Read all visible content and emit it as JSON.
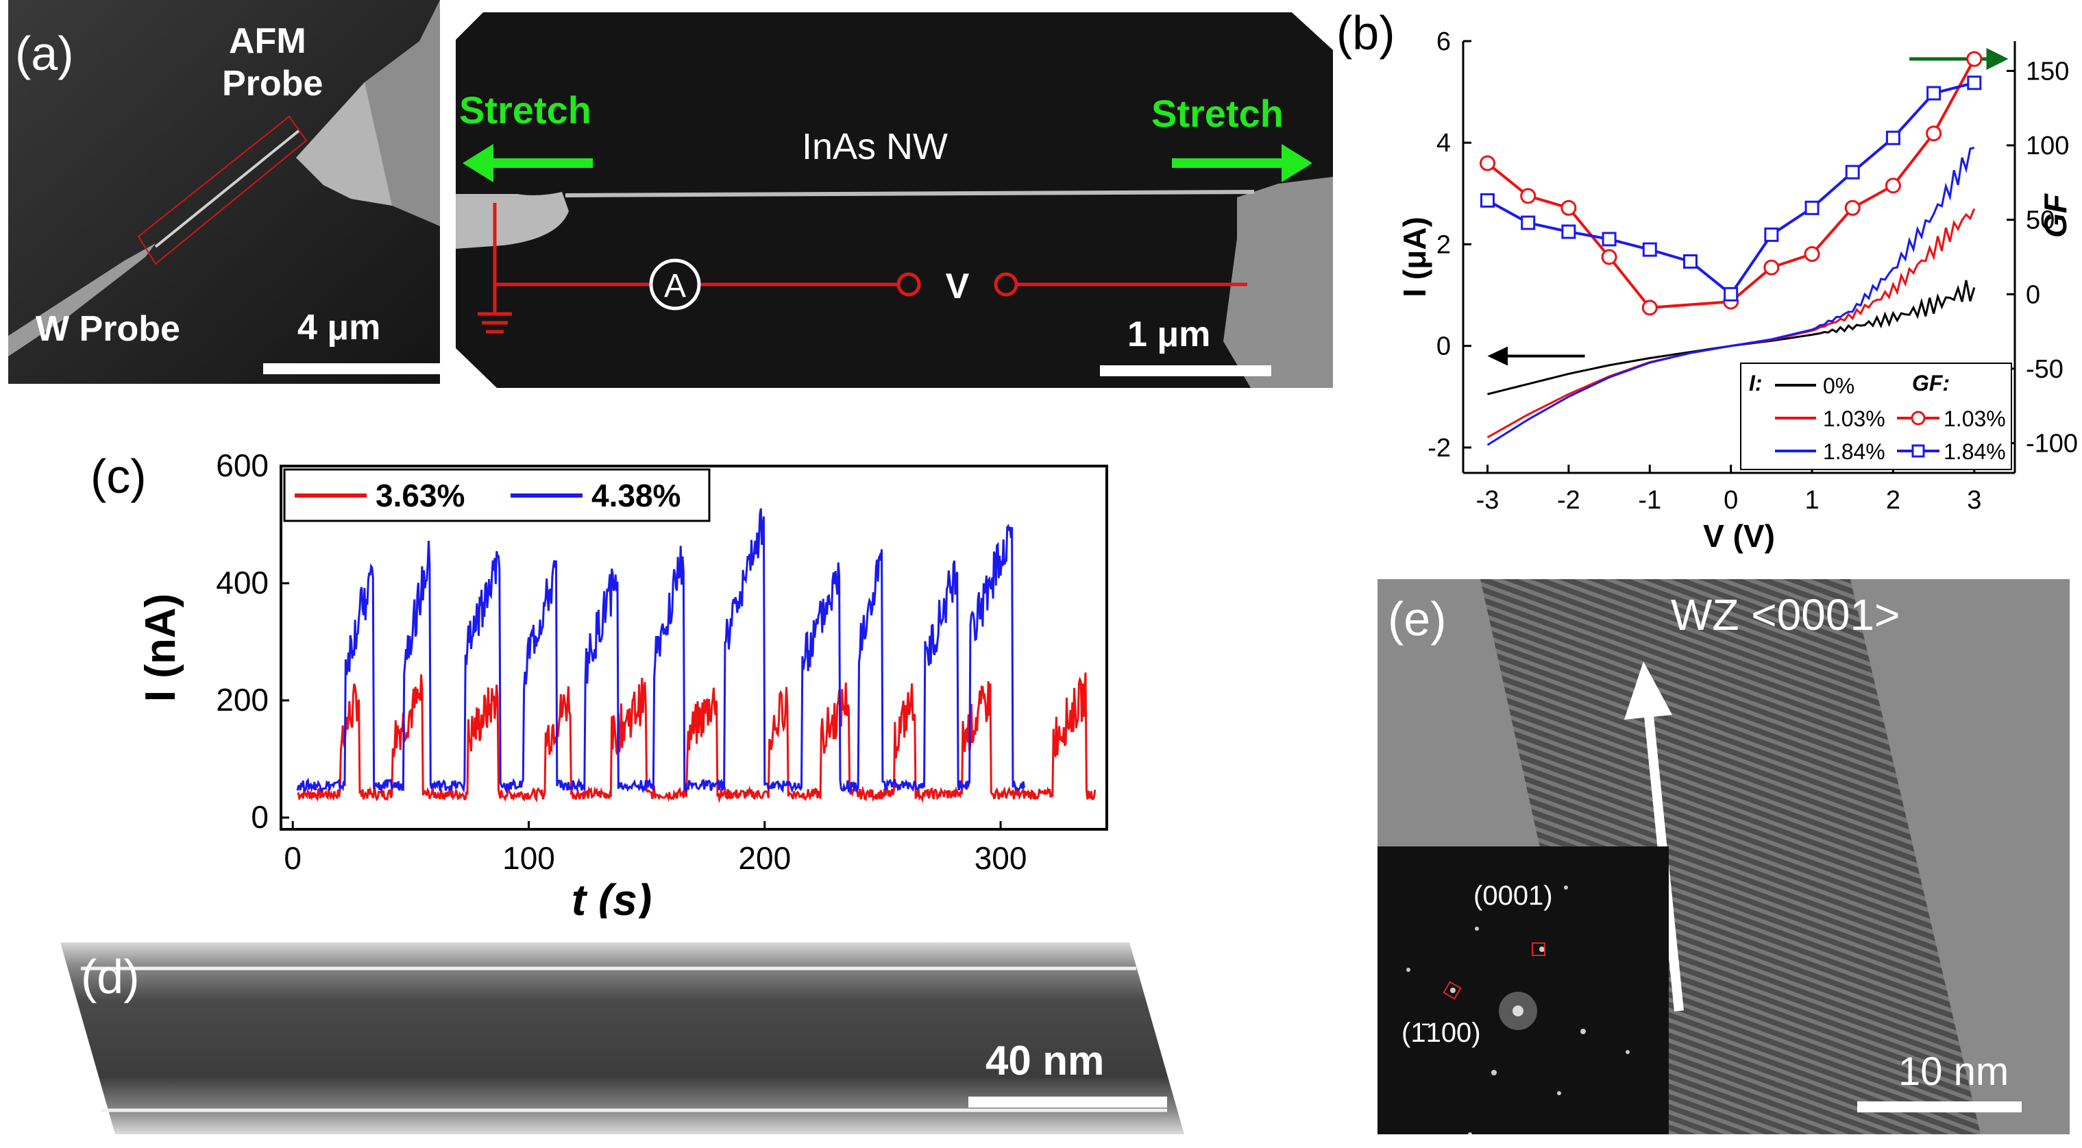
{
  "panel_a": {
    "letter": "(a)",
    "afm_label_line1": "AFM",
    "afm_label_line2": "Probe",
    "w_label": "W Probe",
    "scale_left": "4 μm",
    "stretch_left": "Stretch",
    "stretch_right": "Stretch",
    "nw_label": "InAs NW",
    "ammeter": "A",
    "voltage": "V",
    "scale_right": "1 μm"
  },
  "panel_b": {
    "letter": "(b)",
    "legend": {
      "i_label": "I:",
      "gf_label": "GF:",
      "entries_i": [
        "0%",
        "1.03%",
        "1.84%"
      ],
      "entries_gf": [
        "1.03%",
        "1.84%"
      ]
    },
    "colors": {
      "black": "#000000",
      "red": "#ee1111",
      "blue": "#1a1aee",
      "green_arrow": "#0a6e1e"
    }
  },
  "panel_c": {
    "letter": "(c)"
  },
  "panel_d": {
    "letter": "(d)",
    "scale": "40 nm"
  },
  "panel_e": {
    "letter": "(e)",
    "direction": "WZ <0001>",
    "fft_spot1": "(0001)",
    "fft_spot2": "(1̄100)",
    "scale": "10 nm"
  },
  "chart_data": [
    {
      "type": "line",
      "panel": "b",
      "title": "",
      "xlabel": "V (V)",
      "ylabel_left": "I (μA)",
      "ylabel_right": "GF",
      "xlim": [
        -3.3,
        3.5
      ],
      "ylim_left": [
        -2.5,
        6
      ],
      "ylim_right": [
        -120,
        170
      ],
      "x_ticks": [
        "-3",
        "-2",
        "-1",
        "0",
        "1",
        "2",
        "3"
      ],
      "y_left_ticks": [
        "-2",
        "0",
        "2",
        "4",
        "6"
      ],
      "y_right_ticks": [
        "-100",
        "-50",
        "0",
        "50",
        "100",
        "150"
      ],
      "x": [
        -3,
        -2.5,
        -2,
        -1.5,
        -1,
        -0.5,
        0,
        0.5,
        1,
        1.5,
        2,
        2.5,
        3
      ],
      "series_I": [
        {
          "name": "0%",
          "axis": "left",
          "values": [
            -0.95,
            -0.75,
            -0.55,
            -0.38,
            -0.24,
            -0.12,
            0,
            0.1,
            0.22,
            0.37,
            0.55,
            0.8,
            1.15
          ]
        },
        {
          "name": "1.03%",
          "axis": "left",
          "values": [
            -1.8,
            -1.35,
            -0.95,
            -0.6,
            -0.32,
            -0.14,
            0,
            0.12,
            0.3,
            0.6,
            1.1,
            1.9,
            2.7
          ]
        },
        {
          "name": "1.84%",
          "axis": "left",
          "values": [
            -1.95,
            -1.45,
            -1.0,
            -0.62,
            -0.33,
            -0.14,
            0,
            0.13,
            0.32,
            0.7,
            1.5,
            2.6,
            3.9
          ]
        }
      ],
      "series_GF": [
        {
          "name": "1.03%",
          "axis": "right",
          "x": [
            -3,
            -2.5,
            -2,
            -1.5,
            -1,
            0,
            0.5,
            1,
            1.5,
            2,
            2.5,
            3
          ],
          "values": [
            88,
            66,
            58,
            25,
            -9,
            -5,
            18,
            27,
            58,
            73,
            108,
            158
          ]
        },
        {
          "name": "1.84%",
          "axis": "right",
          "x": [
            -3,
            -2.5,
            -2,
            -1.5,
            -1,
            -0.5,
            0,
            0.5,
            1,
            1.5,
            2,
            2.5,
            3
          ],
          "values": [
            63,
            48,
            42,
            37,
            30,
            22,
            0,
            40,
            58,
            82,
            105,
            135,
            142
          ]
        }
      ]
    },
    {
      "type": "line",
      "panel": "c",
      "title": "",
      "xlabel": "t (s)",
      "ylabel": "I (nA)",
      "xlim": [
        -5,
        345
      ],
      "ylim": [
        -20,
        600
      ],
      "x_ticks": [
        "0",
        "100",
        "200",
        "300"
      ],
      "y_ticks": [
        "0",
        "200",
        "400",
        "600"
      ],
      "legend": [
        "3.63%",
        "4.38%"
      ],
      "series": [
        {
          "name": "3.63%",
          "color": "#ee1111",
          "base": 40,
          "high": 210,
          "pulses": [
            [
              20,
              28
            ],
            [
              42,
              55
            ],
            [
              74,
              87
            ],
            [
              107,
              118
            ],
            [
              135,
              150
            ],
            [
              167,
              180
            ],
            [
              202,
              210
            ],
            [
              224,
              236
            ],
            [
              255,
              264
            ],
            [
              284,
              296
            ],
            [
              322,
              336
            ]
          ]
        },
        {
          "name": "4.38%",
          "color": "#1a1aee",
          "base": 55,
          "high": 380,
          "pulses": [
            [
              22,
              34
            ],
            [
              47,
              58
            ],
            [
              73,
              88
            ],
            [
              98,
              112
            ],
            [
              124,
              138
            ],
            [
              153,
              166
            ],
            [
              183,
              200
            ],
            [
              216,
              232
            ],
            [
              240,
              250
            ],
            [
              268,
              282
            ],
            [
              287,
              305
            ]
          ],
          "peaks": [
            420,
            440,
            450,
            420,
            420,
            450,
            510,
            430,
            460,
            430,
            505
          ]
        }
      ]
    }
  ]
}
